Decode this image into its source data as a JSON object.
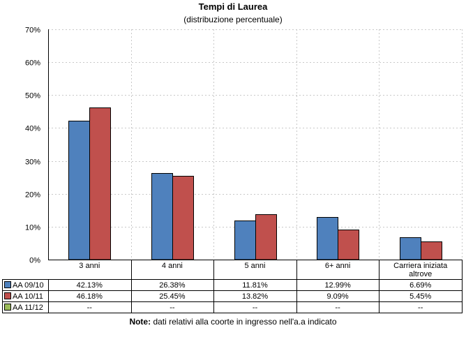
{
  "chart_data": {
    "type": "bar",
    "title": "Tempi di Laurea",
    "subtitle": "(distribuzione percentuale)",
    "ylim": [
      0,
      70
    ],
    "yticks": [
      "0%",
      "10%",
      "20%",
      "30%",
      "40%",
      "50%",
      "60%",
      "70%"
    ],
    "grid": true,
    "categories": [
      "3 anni",
      "4 anni",
      "5 anni",
      "6+ anni",
      "Carriera iniziata altrove"
    ],
    "series": [
      {
        "name": "AA 09/10",
        "color": "#4f81bd",
        "values": [
          42.13,
          26.38,
          11.81,
          12.99,
          6.69
        ],
        "labels": [
          "42.13%",
          "26.38%",
          "11.81%",
          "12.99%",
          "6.69%"
        ]
      },
      {
        "name": "AA 10/11",
        "color": "#c0504d",
        "values": [
          46.18,
          25.45,
          13.82,
          9.09,
          5.45
        ],
        "labels": [
          "46.18%",
          "25.45%",
          "13.82%",
          "9.09%",
          "5.45%"
        ]
      },
      {
        "name": "AA 11/12",
        "color": "#9bbb59",
        "values": [
          null,
          null,
          null,
          null,
          null
        ],
        "labels": [
          "--",
          "--",
          "--",
          "--",
          "--"
        ]
      }
    ],
    "note_label": "Note:",
    "note_text": " dati relativi alla coorte in ingresso nell'a.a indicato"
  }
}
